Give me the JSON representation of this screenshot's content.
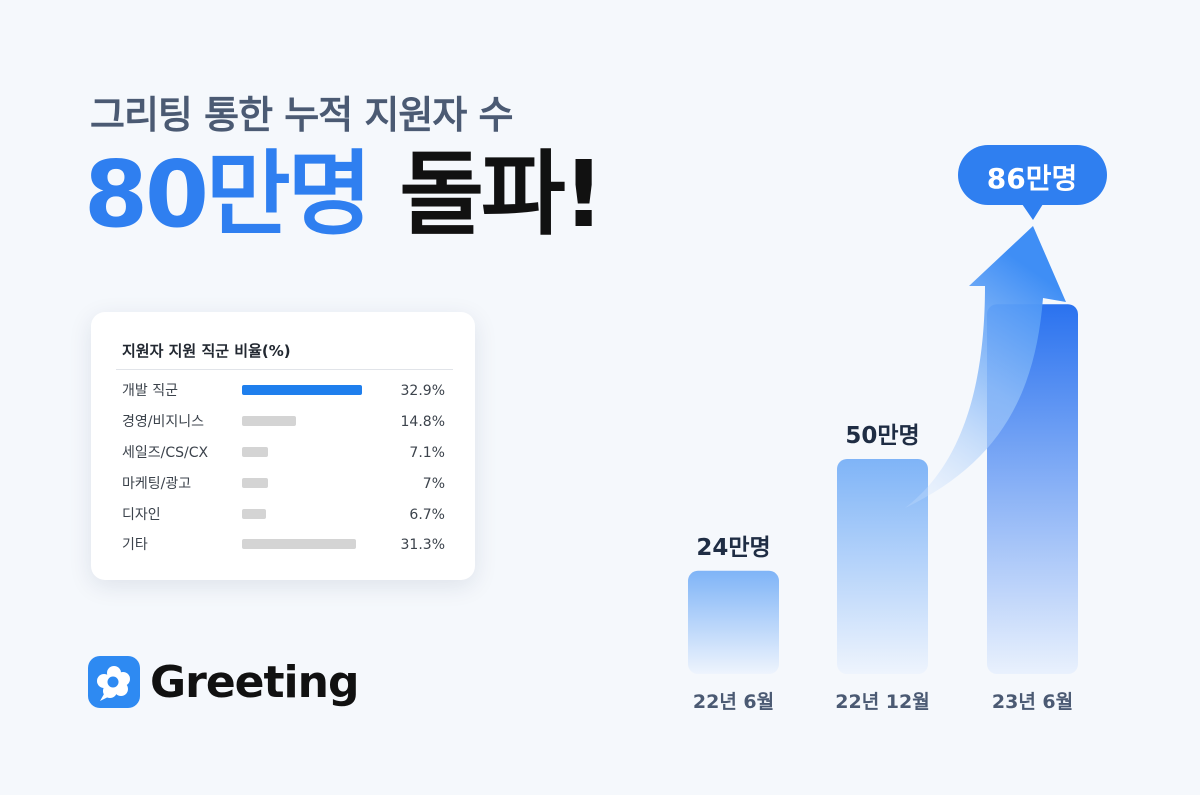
{
  "header": {
    "subtitle": "그리팅 통한 누적 지원자 수",
    "headline_highlight": "80만명",
    "headline_rest": "돌파!"
  },
  "card": {
    "title": "지원자 지원 직군 비율(%)",
    "rows": [
      {
        "label": "개발 직군",
        "value": "32.9%",
        "ratio": 32.9,
        "highlight": true
      },
      {
        "label": "경영/비지니스",
        "value": "14.8%",
        "ratio": 14.8,
        "highlight": false
      },
      {
        "label": "세일즈/CS/CX",
        "value": "7.1%",
        "ratio": 7.1,
        "highlight": false
      },
      {
        "label": "마케팅/광고",
        "value": "7%",
        "ratio": 7.0,
        "highlight": false
      },
      {
        "label": "디자인",
        "value": "6.7%",
        "ratio": 6.7,
        "highlight": false
      },
      {
        "label": "기타",
        "value": "31.3%",
        "ratio": 31.3,
        "highlight": false
      }
    ]
  },
  "brand": {
    "name": "Greeting",
    "logo_icon": "greeting-logo-icon"
  },
  "colors": {
    "accent": "#2f7ff0",
    "bar_highlight": "#1f7fed",
    "bar_neutral": "#d4d4d4"
  },
  "chart_data": [
    {
      "type": "bar",
      "categories": [
        "22년 6월",
        "22년 12월",
        "23년 6월"
      ],
      "values": [
        24,
        50,
        86
      ],
      "value_labels": [
        "24만명",
        "50만명",
        "86만명"
      ],
      "unit": "만명",
      "grid": false,
      "annotation": "arrow rising toward the 86만명 callout"
    },
    {
      "type": "bar",
      "title": "지원자 지원 직군 비율(%)",
      "categories": [
        "개발 직군",
        "경영/비지니스",
        "세일즈/CS/CX",
        "마케팅/광고",
        "디자인",
        "기타"
      ],
      "values": [
        32.9,
        14.8,
        7.1,
        7.0,
        6.7,
        31.3
      ]
    }
  ]
}
